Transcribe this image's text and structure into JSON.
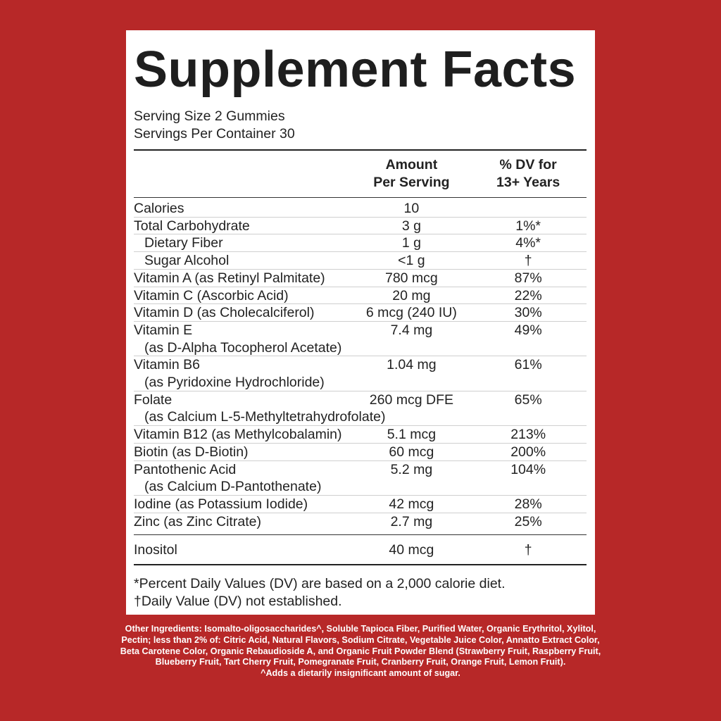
{
  "title": "Supplement Facts",
  "serving_size": "Serving Size 2 Gummies",
  "servings_per_container": "Servings Per Container 30",
  "header": {
    "amount_line1": "Amount",
    "amount_line2": "Per Serving",
    "dv_line1": "% DV for",
    "dv_line2": "13+ Years"
  },
  "rows": [
    {
      "name": "Calories",
      "amount": "10",
      "dv": ""
    },
    {
      "name": "Total Carbohydrate",
      "amount": "3 g",
      "dv": "1%*"
    },
    {
      "name": "Dietary Fiber",
      "amount": "1 g",
      "dv": "4%*"
    },
    {
      "name": "Sugar Alcohol",
      "amount": "<1 g",
      "dv": "†"
    },
    {
      "name": "Vitamin A (as Retinyl Palmitate)",
      "amount": "780 mcg",
      "dv": "87%"
    },
    {
      "name": "Vitamin C (Ascorbic Acid)",
      "amount": "20 mg",
      "dv": "22%"
    },
    {
      "name": "Vitamin D (as Cholecalciferol)",
      "amount": "6 mcg (240 IU)",
      "dv": "30%"
    },
    {
      "name": "Vitamin E",
      "sub": "(as D-Alpha Tocopherol Acetate)",
      "amount": "7.4 mg",
      "dv": "49%"
    },
    {
      "name": "Vitamin B6",
      "sub": "(as Pyridoxine Hydrochloride)",
      "amount": "1.04 mg",
      "dv": "61%"
    },
    {
      "name": "Folate",
      "sub": "(as Calcium L-5-Methyltetrahydrofolate)",
      "amount": "260 mcg DFE",
      "dv": "65%"
    },
    {
      "name": "Vitamin B12 (as Methylcobalamin)",
      "amount": "5.1 mcg",
      "dv": "213%"
    },
    {
      "name": "Biotin (as D-Biotin)",
      "amount": "60 mcg",
      "dv": "200%"
    },
    {
      "name": "Pantothenic Acid",
      "sub": "(as Calcium D-Pantothenate)",
      "amount": "5.2 mg",
      "dv": "104%"
    },
    {
      "name": "Iodine (as Potassium Iodide)",
      "amount": "42 mcg",
      "dv": "28%"
    },
    {
      "name": "Zinc (as Zinc Citrate)",
      "amount": "2.7 mg",
      "dv": "25%"
    }
  ],
  "extra_row": {
    "name": "Inositol",
    "amount": "40 mcg",
    "dv": "†"
  },
  "footnote_dv": "*Percent Daily Values (DV) are based on a 2,000 calorie diet.",
  "footnote_dagger": "†Daily Value (DV) not established.",
  "other_ingredients": "Other Ingredients: Isomalto-oligosaccharides^, Soluble Tapioca Fiber, Purified Water, Organic Erythritol, Xylitol, Pectin; less than 2% of: Citric Acid, Natural Flavors, Sodium Citrate, Vegetable Juice Color, Annatto Extract Color, Beta Carotene Color, Organic Rebaudioside A, and Organic Fruit Powder Blend (Strawberry Fruit, Raspberry Fruit, Blueberry Fruit, Tart Cherry Fruit, Pomegranate Fruit, Cranberry Fruit, Orange Fruit, Lemon Fruit).",
  "sugar_note": "^Adds a dietarily insignificant amount of sugar.",
  "colors": {
    "background": "#b72828",
    "panel": "#ffffff",
    "text": "#222222"
  }
}
